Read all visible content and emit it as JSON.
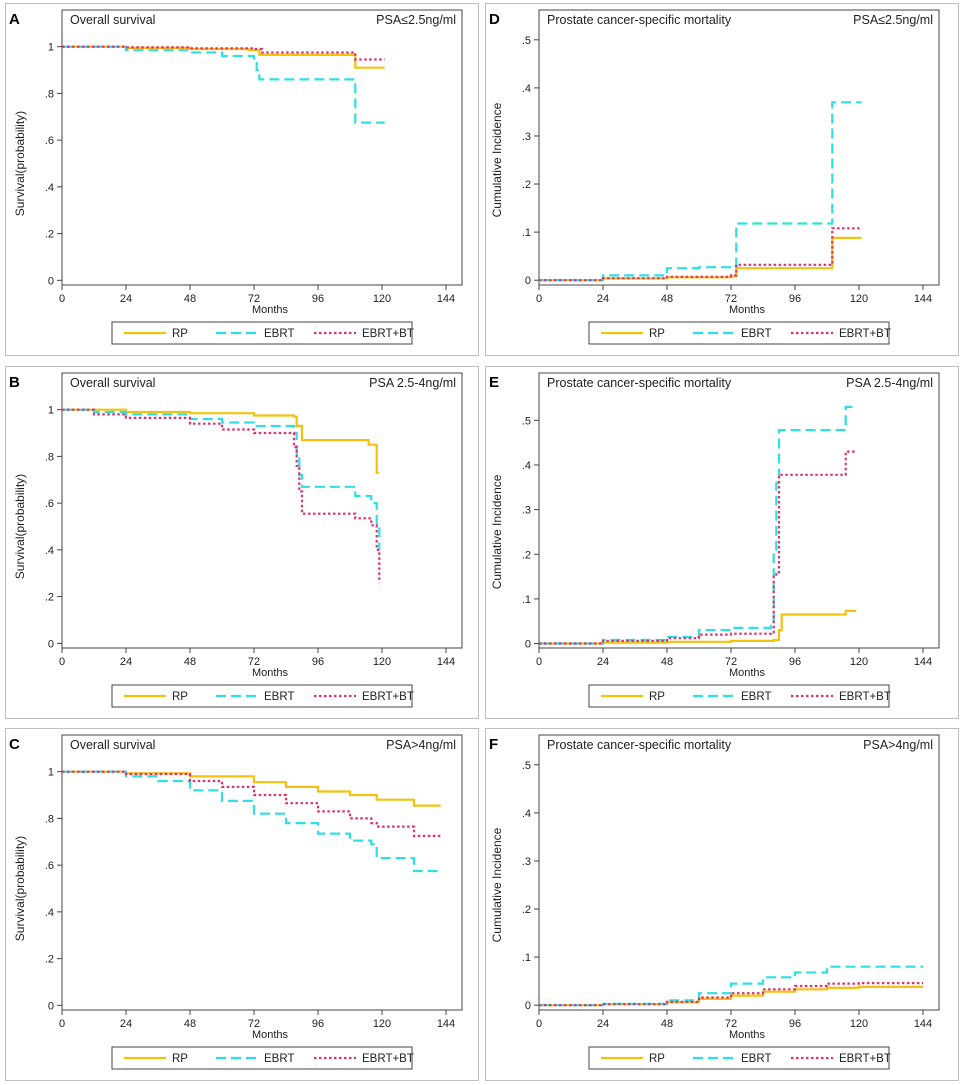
{
  "figure": {
    "legend_labels": [
      "RP",
      "EBRT",
      "EBRT+BT"
    ],
    "series_colors": [
      "#f4c20d",
      "#2ee0e6",
      "#e0306f"
    ]
  },
  "chart_data": [
    {
      "type": "line",
      "panel": "A",
      "title": "Overall survival",
      "subtitle": "PSA≤2.5ng/ml",
      "xlabel": "Months",
      "ylabel": "Survival(probability)",
      "xlim": [
        0,
        150
      ],
      "ylim": [
        -0.02,
        1.05
      ],
      "xticks": [
        0,
        24,
        48,
        72,
        96,
        120,
        144
      ],
      "yticks": [
        0,
        0.2,
        0.4,
        0.6,
        0.8,
        1
      ],
      "ytick_labels": [
        "0",
        ".2",
        ".4",
        ".6",
        ".8",
        "1"
      ],
      "series": [
        {
          "name": "RP",
          "x": [
            0,
            24,
            48,
            70,
            74,
            110,
            121
          ],
          "y": [
            1.0,
            0.995,
            0.99,
            0.985,
            0.965,
            0.91,
            0.91
          ]
        },
        {
          "name": "EBRT",
          "x": [
            0,
            24,
            48,
            60,
            72,
            73,
            74,
            110,
            121
          ],
          "y": [
            1.0,
            0.985,
            0.975,
            0.96,
            0.93,
            0.9,
            0.86,
            0.675,
            0.675
          ]
        },
        {
          "name": "EBRT+BT",
          "x": [
            0,
            24,
            48,
            72,
            75,
            110,
            121
          ],
          "y": [
            1.0,
            0.997,
            0.993,
            0.99,
            0.975,
            0.945,
            0.945
          ]
        }
      ]
    },
    {
      "type": "line",
      "panel": "D",
      "title": "Prostate cancer-specific mortality",
      "subtitle": "PSA≤2.5ng/ml",
      "xlabel": "Months",
      "ylabel": "Cumulative Incidence",
      "xlim": [
        0,
        150
      ],
      "ylim": [
        -0.01,
        0.51
      ],
      "xticks": [
        0,
        24,
        48,
        72,
        96,
        120,
        144
      ],
      "yticks": [
        0,
        0.1,
        0.2,
        0.3,
        0.4,
        0.5
      ],
      "ytick_labels": [
        "0",
        ".1",
        ".2",
        ".3",
        ".4",
        ".5"
      ],
      "series": [
        {
          "name": "RP",
          "x": [
            0,
            24,
            48,
            72,
            74,
            110,
            121
          ],
          "y": [
            0,
            0.004,
            0.006,
            0.008,
            0.025,
            0.088,
            0.088
          ]
        },
        {
          "name": "EBRT",
          "x": [
            0,
            24,
            48,
            60,
            72,
            74,
            110,
            121
          ],
          "y": [
            0,
            0.01,
            0.025,
            0.027,
            0.03,
            0.118,
            0.37,
            0.37
          ]
        },
        {
          "name": "EBRT+BT",
          "x": [
            0,
            24,
            48,
            72,
            74,
            110,
            121
          ],
          "y": [
            0,
            0.004,
            0.007,
            0.01,
            0.032,
            0.108,
            0.108
          ]
        }
      ]
    },
    {
      "type": "line",
      "panel": "B",
      "title": "Overall survival",
      "subtitle": "PSA 2.5-4ng/ml",
      "xlabel": "Months",
      "ylabel": "Survival(probability)",
      "xlim": [
        0,
        150
      ],
      "ylim": [
        -0.02,
        1.05
      ],
      "xticks": [
        0,
        24,
        48,
        72,
        96,
        120,
        144
      ],
      "yticks": [
        0,
        0.2,
        0.4,
        0.6,
        0.8,
        1
      ],
      "ytick_labels": [
        "0",
        ".2",
        ".4",
        ".6",
        ".8",
        "1"
      ],
      "series": [
        {
          "name": "RP",
          "x": [
            0,
            24,
            48,
            72,
            87,
            88,
            90,
            115,
            118,
            119
          ],
          "y": [
            1.0,
            0.99,
            0.985,
            0.975,
            0.97,
            0.93,
            0.87,
            0.85,
            0.73,
            0.73
          ]
        },
        {
          "name": "EBRT",
          "x": [
            0,
            12,
            24,
            48,
            60,
            72,
            87,
            88,
            89,
            90,
            110,
            116,
            118,
            119
          ],
          "y": [
            1.0,
            0.99,
            0.98,
            0.96,
            0.945,
            0.93,
            0.9,
            0.8,
            0.72,
            0.67,
            0.63,
            0.6,
            0.5,
            0.4
          ]
        },
        {
          "name": "EBRT+BT",
          "x": [
            0,
            12,
            24,
            48,
            60,
            72,
            87,
            88,
            89,
            90,
            110,
            116,
            118,
            119
          ],
          "y": [
            1.0,
            0.98,
            0.965,
            0.94,
            0.915,
            0.9,
            0.84,
            0.76,
            0.65,
            0.555,
            0.535,
            0.505,
            0.4,
            0.26
          ]
        }
      ]
    },
    {
      "type": "line",
      "panel": "E",
      "title": "Prostate cancer-specific mortality",
      "subtitle": "PSA 2.5-4ng/ml",
      "xlabel": "Months",
      "ylabel": "Cumulative Incidence",
      "xlim": [
        0,
        150
      ],
      "ylim": [
        -0.01,
        0.55
      ],
      "xticks": [
        0,
        24,
        48,
        72,
        96,
        120,
        144
      ],
      "yticks": [
        0,
        0.1,
        0.2,
        0.3,
        0.4,
        0.5
      ],
      "ytick_labels": [
        "0",
        ".1",
        ".2",
        ".3",
        ".4",
        ".5"
      ],
      "series": [
        {
          "name": "RP",
          "x": [
            0,
            24,
            48,
            72,
            88,
            90,
            91,
            115,
            119
          ],
          "y": [
            0,
            0.002,
            0.004,
            0.006,
            0.008,
            0.03,
            0.065,
            0.073,
            0.073
          ]
        },
        {
          "name": "EBRT",
          "x": [
            0,
            24,
            48,
            60,
            72,
            87,
            88,
            89,
            90,
            115,
            119
          ],
          "y": [
            0,
            0.008,
            0.015,
            0.03,
            0.035,
            0.04,
            0.2,
            0.36,
            0.478,
            0.53,
            0.53
          ]
        },
        {
          "name": "EBRT+BT",
          "x": [
            0,
            24,
            48,
            60,
            72,
            87,
            88,
            89,
            90,
            114,
            115,
            119
          ],
          "y": [
            0,
            0.006,
            0.012,
            0.02,
            0.022,
            0.025,
            0.15,
            0.16,
            0.378,
            0.378,
            0.43,
            0.43
          ]
        }
      ]
    },
    {
      "type": "line",
      "panel": "C",
      "title": "Overall survival",
      "subtitle": "PSA>4ng/ml",
      "xlabel": "Months",
      "ylabel": "Survival(probability)",
      "xlim": [
        0,
        150
      ],
      "ylim": [
        -0.02,
        1.05
      ],
      "xticks": [
        0,
        24,
        48,
        72,
        96,
        120,
        144
      ],
      "yticks": [
        0,
        0.2,
        0.4,
        0.6,
        0.8,
        1
      ],
      "ytick_labels": [
        "0",
        ".2",
        ".4",
        ".6",
        ".8",
        "1"
      ],
      "series": [
        {
          "name": "RP",
          "x": [
            0,
            24,
            48,
            72,
            84,
            96,
            108,
            118,
            132,
            142
          ],
          "y": [
            1.0,
            0.993,
            0.98,
            0.955,
            0.935,
            0.915,
            0.9,
            0.88,
            0.855,
            0.855
          ]
        },
        {
          "name": "EBRT",
          "x": [
            0,
            24,
            36,
            48,
            60,
            72,
            84,
            96,
            108,
            116,
            118,
            130,
            132,
            142
          ],
          "y": [
            1.0,
            0.98,
            0.96,
            0.92,
            0.875,
            0.82,
            0.78,
            0.735,
            0.705,
            0.69,
            0.63,
            0.63,
            0.575,
            0.575
          ]
        },
        {
          "name": "EBRT+BT",
          "x": [
            0,
            24,
            48,
            60,
            72,
            84,
            96,
            108,
            116,
            118,
            130,
            132,
            142
          ],
          "y": [
            1.0,
            0.99,
            0.96,
            0.935,
            0.9,
            0.865,
            0.83,
            0.8,
            0.78,
            0.765,
            0.765,
            0.725,
            0.725
          ]
        }
      ]
    },
    {
      "type": "line",
      "panel": "F",
      "title": "Prostate cancer-specific mortality",
      "subtitle": "PSA>4ng/ml",
      "xlabel": "Months",
      "ylabel": "Cumulative Incidence",
      "xlim": [
        0,
        150
      ],
      "ylim": [
        -0.01,
        0.51
      ],
      "xticks": [
        0,
        24,
        48,
        72,
        96,
        120,
        144
      ],
      "yticks": [
        0,
        0.1,
        0.2,
        0.3,
        0.4,
        0.5
      ],
      "ytick_labels": [
        "0",
        ".1",
        ".2",
        ".3",
        ".4",
        ".5"
      ],
      "series": [
        {
          "name": "RP",
          "x": [
            0,
            24,
            48,
            60,
            72,
            84,
            96,
            108,
            120,
            144
          ],
          "y": [
            0,
            0.002,
            0.006,
            0.013,
            0.02,
            0.028,
            0.033,
            0.036,
            0.038,
            0.038
          ]
        },
        {
          "name": "EBRT",
          "x": [
            0,
            24,
            48,
            60,
            72,
            84,
            96,
            108,
            120,
            144
          ],
          "y": [
            0,
            0.003,
            0.01,
            0.025,
            0.045,
            0.058,
            0.068,
            0.08,
            0.08,
            0.08
          ]
        },
        {
          "name": "EBRT+BT",
          "x": [
            0,
            24,
            48,
            60,
            72,
            84,
            96,
            108,
            120,
            144
          ],
          "y": [
            0,
            0.002,
            0.007,
            0.016,
            0.025,
            0.033,
            0.04,
            0.045,
            0.046,
            0.046
          ]
        }
      ]
    }
  ]
}
